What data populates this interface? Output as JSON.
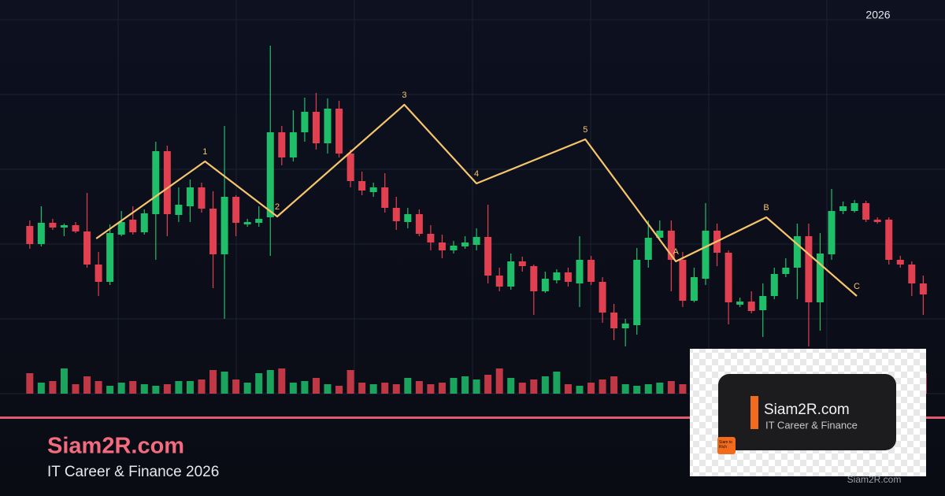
{
  "chart_data": {
    "type": "candlestick",
    "corner_label": "2026",
    "xlim": [
      -2.6,
      79.9
    ],
    "ylim": [
      0,
      500
    ],
    "vlim": [
      0,
      40
    ],
    "up_color": "#1fbf6a",
    "down_color": "#e0404f",
    "open": [
      213,
      190,
      217,
      211,
      214,
      206,
      164,
      142,
      202,
      221,
      205,
      228,
      308,
      227,
      238,
      262,
      235,
      177,
      250,
      215,
      217,
      224,
      332,
      300,
      332,
      358,
      318,
      362,
      305,
      270,
      256,
      262,
      236,
      218,
      228,
      203,
      192,
      182,
      187,
      189,
      199,
      150,
      136,
      168,
      162,
      130,
      144,
      154,
      140,
      170,
      142,
      103,
      83,
      87,
      170,
      198,
      207,
      170,
      118,
      146,
      207,
      179,
      113,
      117,
      106,
      124,
      152,
      160,
      200,
      116,
      177,
      232,
      232,
      242,
      221,
      221,
      170,
      164,
      140
    ],
    "high": [
      220,
      238,
      222,
      216,
      218,
      255,
      180,
      215,
      232,
      238,
      234,
      320,
      315,
      262,
      272,
      268,
      257,
      340,
      252,
      222,
      238,
      442,
      340,
      360,
      376,
      382,
      375,
      372,
      310,
      282,
      268,
      280,
      250,
      236,
      234,
      214,
      202,
      194,
      200,
      210,
      240,
      160,
      178,
      174,
      164,
      155,
      158,
      160,
      200,
      175,
      148,
      114,
      95,
      185,
      220,
      220,
      220,
      180,
      160,
      242,
      216,
      182,
      122,
      130,
      140,
      160,
      172,
      216,
      216,
      204,
      260,
      244,
      246,
      245,
      224,
      224,
      175,
      168,
      150
    ],
    "low": [
      184,
      187,
      208,
      200,
      204,
      160,
      124,
      138,
      200,
      202,
      202,
      170,
      200,
      218,
      218,
      230,
      134,
      95,
      200,
      212,
      212,
      175,
      290,
      295,
      320,
      310,
      305,
      300,
      262,
      252,
      250,
      230,
      208,
      210,
      200,
      182,
      172,
      178,
      184,
      182,
      140,
      130,
      132,
      155,
      100,
      128,
      140,
      136,
      110,
      138,
      90,
      68,
      60,
      75,
      160,
      194,
      130,
      110,
      116,
      138,
      162,
      88,
      110,
      102,
      72,
      120,
      148,
      120,
      60,
      80,
      170,
      228,
      230,
      218,
      216,
      164,
      160,
      124,
      100
    ],
    "close": [
      190,
      217,
      211,
      214,
      206,
      164,
      142,
      204,
      218,
      205,
      229,
      308,
      228,
      240,
      262,
      235,
      177,
      250,
      217,
      218,
      222,
      332,
      300,
      332,
      358,
      318,
      362,
      305,
      270,
      258,
      262,
      236,
      219,
      228,
      203,
      192,
      182,
      188,
      192,
      199,
      150,
      136,
      168,
      162,
      130,
      146,
      154,
      142,
      170,
      142,
      103,
      83,
      89,
      170,
      198,
      207,
      170,
      118,
      148,
      207,
      179,
      116,
      117,
      105,
      124,
      152,
      160,
      200,
      116,
      178,
      232,
      238,
      242,
      221,
      218,
      170,
      164,
      140,
      126
    ],
    "volume": [
      26,
      14,
      16,
      32,
      12,
      22,
      16,
      10,
      14,
      16,
      12,
      10,
      12,
      16,
      16,
      18,
      30,
      28,
      18,
      14,
      26,
      30,
      32,
      14,
      16,
      20,
      12,
      10,
      30,
      14,
      12,
      14,
      12,
      20,
      16,
      12,
      14,
      20,
      22,
      18,
      24,
      32,
      20,
      14,
      18,
      22,
      28,
      12,
      10,
      14,
      18,
      22,
      12,
      10,
      12,
      14,
      16,
      12,
      20,
      14,
      16,
      18,
      22,
      16,
      18,
      22,
      20,
      18,
      22,
      24,
      16,
      14,
      18,
      20,
      12,
      14,
      18,
      20,
      26
    ],
    "waves": {
      "color": "#f7c56b",
      "x": [
        5.8,
        15.3,
        21.6,
        32.7,
        39.0,
        48.5,
        56.4,
        64.3,
        72.2
      ],
      "values": [
        197,
        295,
        225,
        367,
        267,
        323,
        168,
        224,
        124
      ],
      "labels": [
        null,
        "1",
        "2",
        "3",
        "4",
        "5",
        "A",
        "B",
        "C"
      ]
    }
  },
  "branding": {
    "title": "Siam2R.com",
    "subtitle": "IT Career & Finance 2026"
  },
  "logo": {
    "title": "Siam2R.com",
    "subtitle": "IT Career & Finance",
    "badge": "Siam to Rich"
  },
  "watermark": "Siam2R.com"
}
